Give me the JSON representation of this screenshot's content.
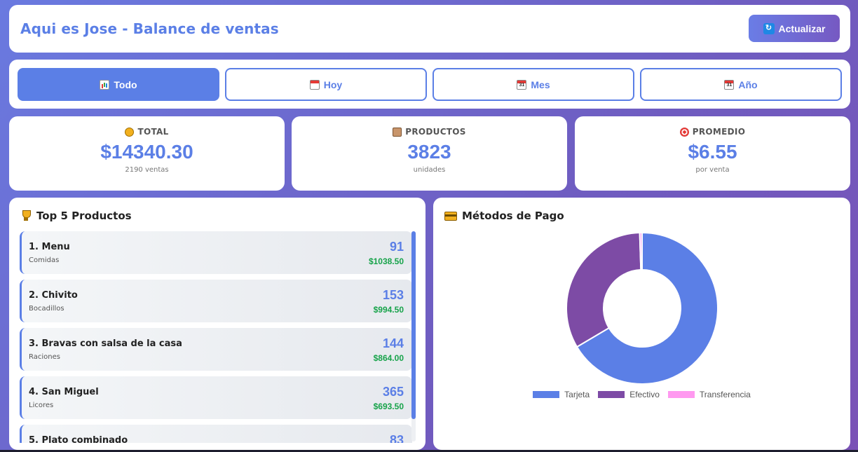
{
  "header": {
    "title": "Aqui es Jose - Balance de ventas",
    "refresh_label": "Actualizar",
    "refresh_icon": "refresh-icon"
  },
  "filters": [
    {
      "label": "Todo",
      "icon": "bar-chart-icon",
      "active": true
    },
    {
      "label": "Hoy",
      "icon": "calendar-icon",
      "active": false
    },
    {
      "label": "Mes",
      "icon": "calendar-31-icon",
      "active": false
    },
    {
      "label": "Año",
      "icon": "calendar-icon",
      "active": false
    }
  ],
  "stats": {
    "total": {
      "label": "TOTAL",
      "value": "$14340.30",
      "sub": "2190 ventas",
      "icon": "money-bag-icon"
    },
    "products": {
      "label": "PRODUCTOS",
      "value": "3823",
      "sub": "unidades",
      "icon": "package-icon"
    },
    "average": {
      "label": "PROMEDIO",
      "value": "$6.55",
      "sub": "por venta",
      "icon": "target-icon"
    }
  },
  "top_products": {
    "title": "Top 5 Productos",
    "items": [
      {
        "name": "1. Menu",
        "category": "Comidas",
        "qty": "91",
        "amount": "$1038.50"
      },
      {
        "name": "2. Chivito",
        "category": "Bocadillos",
        "qty": "153",
        "amount": "$994.50"
      },
      {
        "name": "3. Bravas con salsa de la casa",
        "category": "Raciones",
        "qty": "144",
        "amount": "$864.00"
      },
      {
        "name": "4. San Miguel",
        "category": "Licores",
        "qty": "365",
        "amount": "$693.50"
      },
      {
        "name": "5. Plato combinado",
        "category": "",
        "qty": "83",
        "amount": ""
      }
    ]
  },
  "payments": {
    "title": "Métodos de Pago"
  },
  "chart_data": {
    "type": "pie",
    "categories": [
      "Tarjeta",
      "Efectivo",
      "Transferencia"
    ],
    "values": [
      66.5,
      33.0,
      0.5
    ],
    "colors": [
      "#5b7fe6",
      "#7d4ba5",
      "#ff99f0"
    ],
    "legend": "bottom"
  }
}
